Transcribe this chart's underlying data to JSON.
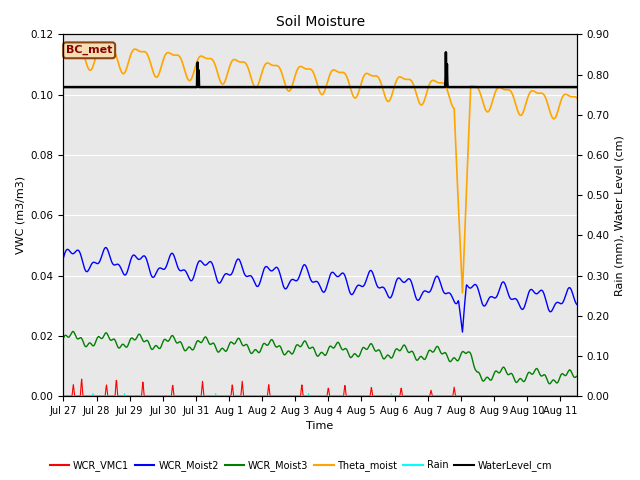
{
  "title": "Soil Moisture",
  "xlabel": "Time",
  "ylabel_left": "VWC (m3/m3)",
  "ylabel_right": "Rain (mm), Water Level (cm)",
  "ylim_left": [
    0,
    0.12
  ],
  "ylim_right": [
    0.0,
    0.9
  ],
  "yticks_left": [
    0.0,
    0.02,
    0.04,
    0.06,
    0.08,
    0.1,
    0.12
  ],
  "yticks_right": [
    0.0,
    0.1,
    0.2,
    0.3,
    0.4,
    0.5,
    0.6,
    0.7,
    0.8,
    0.9
  ],
  "bg_color": "#e8e8e8",
  "plot_bg_color": "#e8e8e8",
  "annotation_text": "BC_met",
  "annotation_bbox_facecolor": "#f5deb3",
  "annotation_bbox_edgecolor": "#8b4513",
  "water_level_value": 0.1025,
  "legend_labels": [
    "WCR_VMC1",
    "WCR_Moist2",
    "WCR_Moist3",
    "Theta_moist",
    "Rain",
    "WaterLevel_cm"
  ],
  "legend_colors": [
    "red",
    "blue",
    "green",
    "orange",
    "cyan",
    "black"
  ],
  "tick_labels": [
    "Jul 27",
    "Jul 28",
    "Jul 29",
    "Jul 30",
    "Jul 31",
    "Aug 1",
    "Aug 2",
    "Aug 3",
    "Aug 4",
    "Aug 5",
    "Aug 6",
    "Aug 7",
    "Aug 8",
    "Aug 9\nAug 9",
    "Aug 10\nAug 10",
    "Aug 11"
  ]
}
